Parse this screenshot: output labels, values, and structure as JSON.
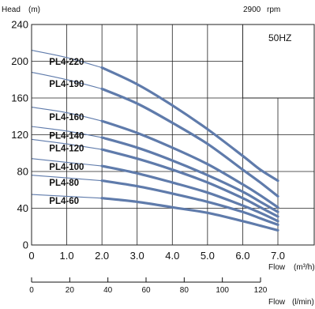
{
  "chart_data": {
    "type": "line",
    "y_axis_label": "Head",
    "y_axis_unit": "(m)",
    "speed_label": "2900",
    "speed_unit": "rpm",
    "frequency_label": "50HZ",
    "x_axis_label": "Flow",
    "x_axis_unit": "(m³/h)",
    "x2_axis_label": "Flow",
    "x2_axis_unit": "(l/min)",
    "xlim": [
      0,
      7.0
    ],
    "ylim": [
      0,
      240
    ],
    "x_ticks": [
      "0",
      "1.0",
      "2.0",
      "3.0",
      "4.0",
      "5.0",
      "6.0",
      "7.0"
    ],
    "x_tick_values": [
      0,
      1,
      2,
      3,
      4,
      5,
      6,
      7
    ],
    "y_ticks": [
      "0",
      "40",
      "80",
      "120",
      "160",
      "200",
      "240"
    ],
    "y_tick_values": [
      0,
      40,
      80,
      120,
      160,
      200,
      240
    ],
    "x2_ticks": [
      "0",
      "20",
      "40",
      "60",
      "80",
      "100",
      "120"
    ],
    "x2_tick_values": [
      0,
      20,
      40,
      60,
      80,
      100,
      120
    ],
    "x2_max": 120,
    "grid_x": [
      0,
      1,
      2,
      3,
      4,
      5,
      6,
      7
    ],
    "grid_y": [
      40,
      80,
      120,
      160,
      200,
      240
    ],
    "grid": true,
    "operating_range": [
      2.0,
      7.0
    ],
    "line_color": "#5f7bab",
    "series": [
      {
        "name": "PL4-220",
        "x": [
          0,
          1,
          2,
          3,
          4,
          5,
          6,
          6.5,
          7
        ],
        "y": [
          212,
          204,
          193,
          175,
          152,
          126,
          97,
          82,
          70
        ]
      },
      {
        "name": "PL4-190",
        "x": [
          0,
          1,
          2,
          3,
          4,
          5,
          6,
          6.5,
          7
        ],
        "y": [
          188,
          180,
          170,
          154,
          133,
          110,
          82,
          68,
          53
        ]
      },
      {
        "name": "PL4-160",
        "x": [
          0,
          1,
          2,
          3,
          4,
          5,
          6,
          6.5,
          7
        ],
        "y": [
          150,
          144,
          135,
          122,
          106,
          88,
          66,
          54,
          41
        ]
      },
      {
        "name": "PL4-140",
        "x": [
          0,
          1,
          2,
          3,
          4,
          5,
          6,
          6.5,
          7
        ],
        "y": [
          129,
          124,
          117,
          106,
          92,
          76,
          58,
          47,
          36
        ]
      },
      {
        "name": "PL4-120",
        "x": [
          0,
          1,
          2,
          3,
          4,
          5,
          6,
          6.5,
          7
        ],
        "y": [
          115,
          110,
          104,
          94,
          82,
          68,
          51,
          41,
          31
        ]
      },
      {
        "name": "PL4-100",
        "x": [
          0,
          1,
          2,
          3,
          4,
          5,
          6,
          6.5,
          7
        ],
        "y": [
          94,
          90,
          86,
          78,
          68,
          57,
          43,
          35,
          26
        ]
      },
      {
        "name": "PL4-80",
        "x": [
          0,
          1,
          2,
          3,
          4,
          5,
          6,
          6.5,
          7
        ],
        "y": [
          76,
          73,
          70,
          64,
          56,
          47,
          36,
          29,
          22
        ]
      },
      {
        "name": "PL4-60",
        "x": [
          0,
          1,
          2,
          3,
          4,
          5,
          6,
          6.5,
          7
        ],
        "y": [
          55,
          53,
          51,
          47,
          41,
          35,
          26,
          21,
          16
        ]
      }
    ]
  }
}
